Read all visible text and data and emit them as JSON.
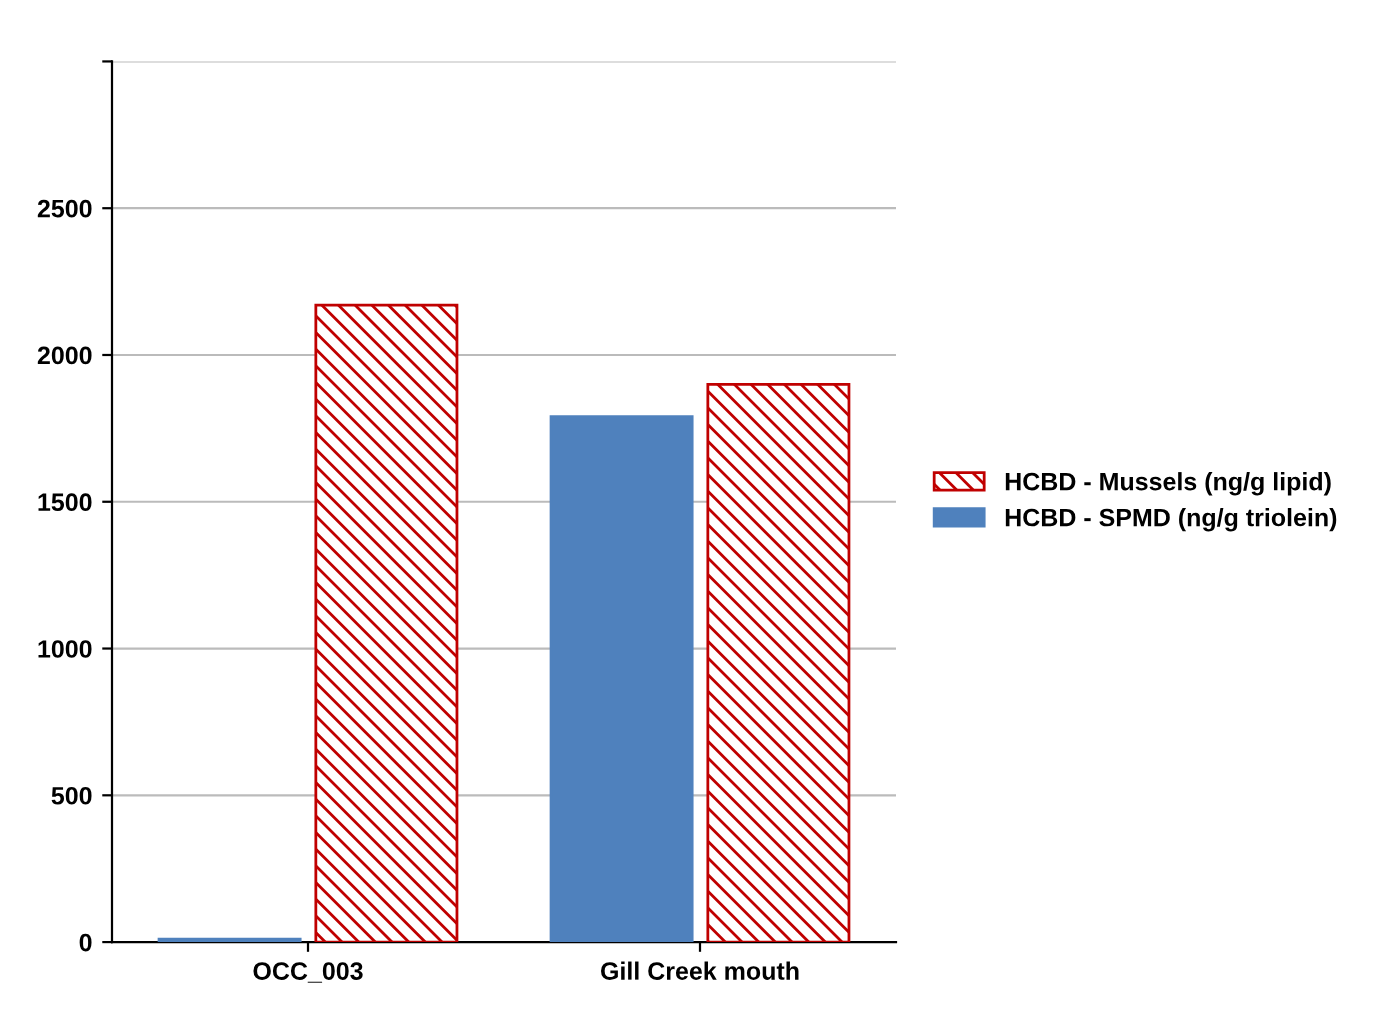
{
  "chart_data": {
    "type": "bar",
    "categories": [
      "OCC_003",
      "Gill Creek mouth"
    ],
    "series": [
      {
        "name": "HCBD - SPMD (ng/g triolein)",
        "color": "#4f81bd",
        "values": [
          10,
          1790
        ]
      },
      {
        "name": "HCBD - Mussels (ng/g lipid)",
        "color": "#c00000",
        "values": [
          2170,
          1900
        ]
      }
    ],
    "ylim": [
      0,
      3000
    ],
    "yticks": [
      0,
      500,
      1000,
      1500,
      2000,
      2500,
      {
        "value": 3000,
        "label": null
      }
    ],
    "grid": "y",
    "legend": "right"
  }
}
